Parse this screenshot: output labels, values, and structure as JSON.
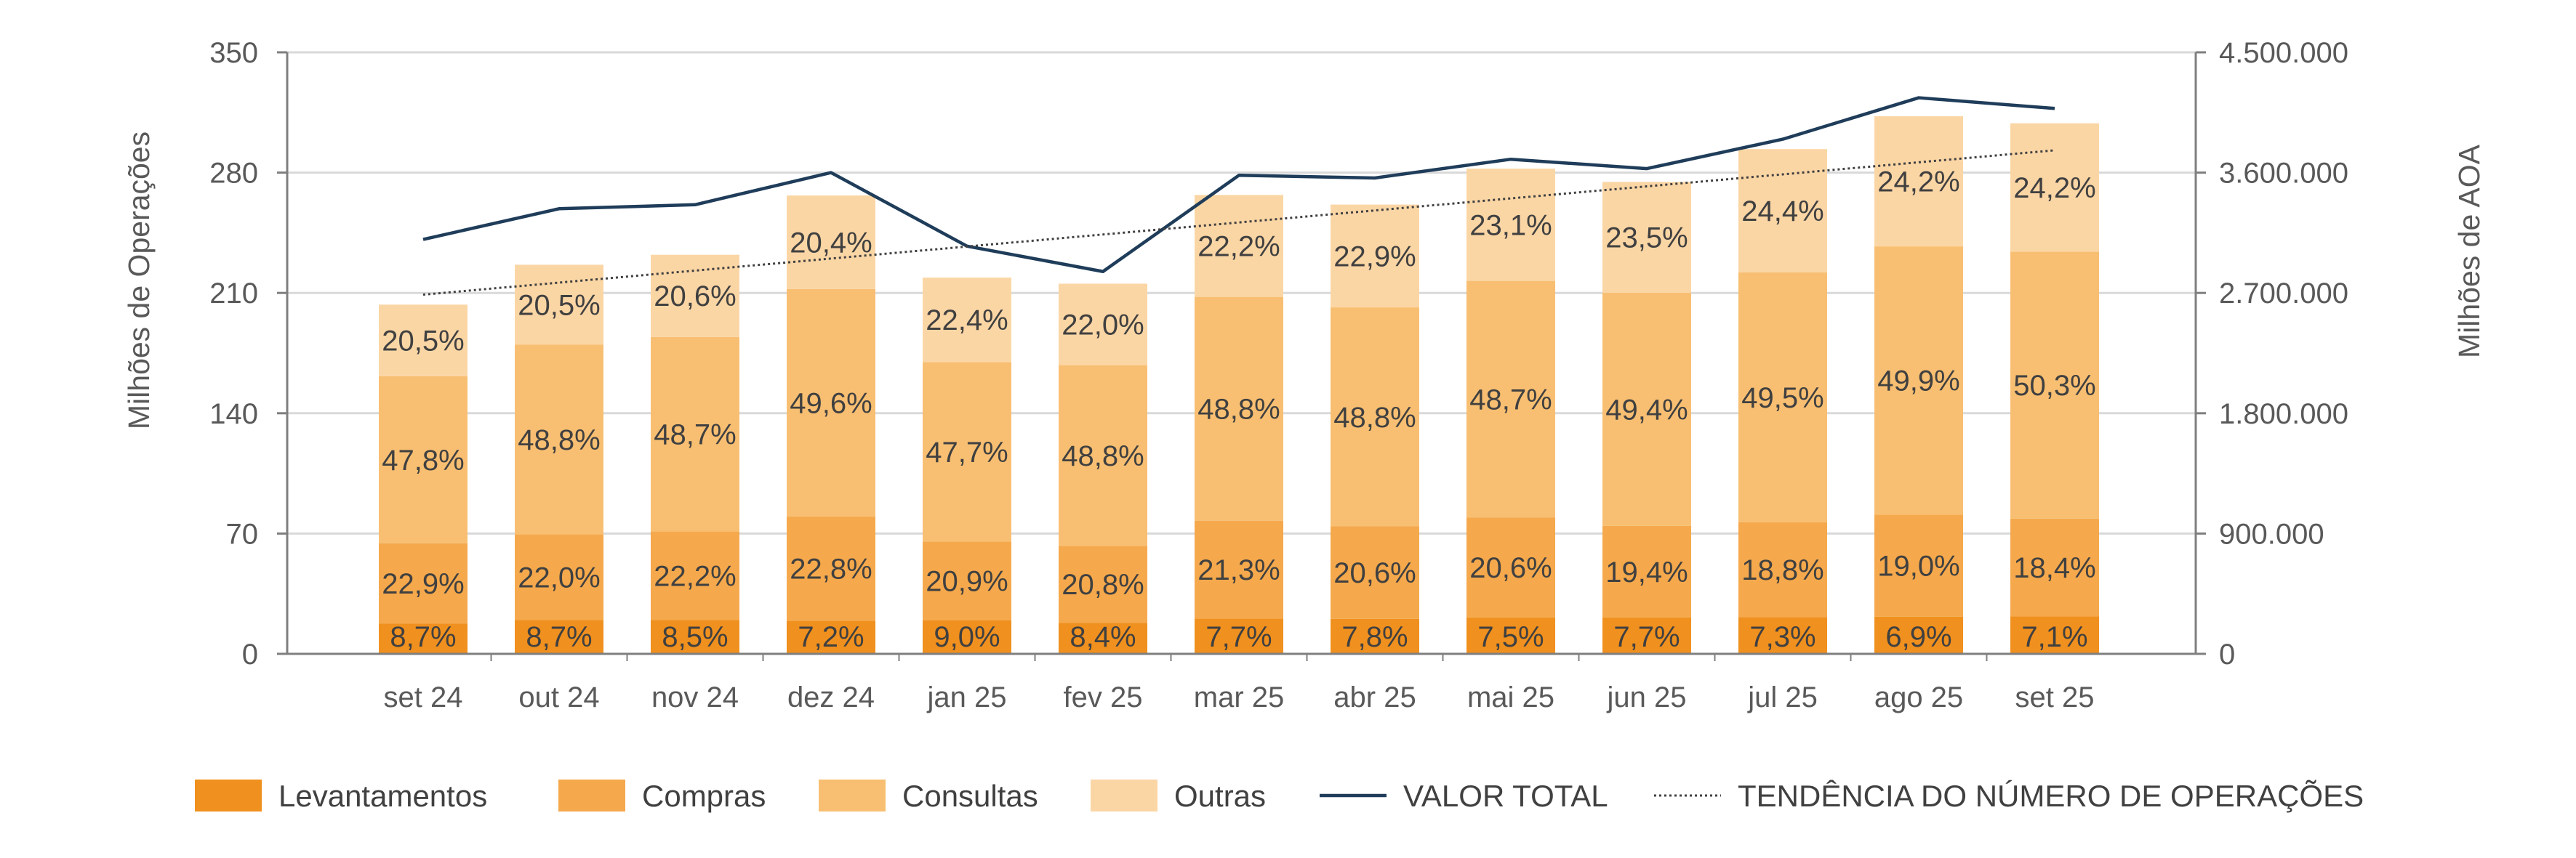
{
  "chart_data": {
    "type": "bar",
    "stacked": true,
    "categories": [
      "set 24",
      "out 24",
      "nov 24",
      "dez 24",
      "jan 25",
      "fev 25",
      "mar 25",
      "abr 25",
      "mai 25",
      "jun 25",
      "jul 25",
      "ago 25",
      "set 25"
    ],
    "series": [
      {
        "name": "Levantamentos",
        "color": "#f0901e",
        "values": [
          17.7,
          19.7,
          19.7,
          19.2,
          19.6,
          18.1,
          20.6,
          20.4,
          21.2,
          21.2,
          21.4,
          21.6,
          21.9
        ],
        "labels": [
          "8,7%",
          "8,7%",
          "8,5%",
          "7,2%",
          "9,0%",
          "8,4%",
          "7,7%",
          "7,8%",
          "7,5%",
          "7,7%",
          "7,3%",
          "6,9%",
          "7,1%"
        ]
      },
      {
        "name": "Compras",
        "color": "#f5a94c",
        "values": [
          46.6,
          49.8,
          51.6,
          60.8,
          45.8,
          44.8,
          56.9,
          53.8,
          58.2,
          53.3,
          55.2,
          59.4,
          56.8
        ],
        "labels": [
          "22,9%",
          "22,0%",
          "22,2%",
          "22,8%",
          "20,9%",
          "20,8%",
          "21,3%",
          "20,6%",
          "20,6%",
          "19,4%",
          "18,8%",
          "19,0%",
          "18,4%"
        ]
      },
      {
        "name": "Consultas",
        "color": "#f8bf72",
        "values": [
          97.2,
          110.5,
          113.1,
          132.3,
          104.4,
          105.1,
          130.2,
          127.4,
          137.6,
          135.6,
          145.4,
          156.1,
          155.3
        ],
        "labels": [
          "47,8%",
          "48,8%",
          "48,7%",
          "49,6%",
          "47,7%",
          "48,8%",
          "48,8%",
          "48,8%",
          "48,7%",
          "49,4%",
          "49,5%",
          "49,9%",
          "50,3%"
        ]
      },
      {
        "name": "Outras",
        "color": "#fbd6a5",
        "values": [
          41.7,
          46.4,
          47.8,
          54.4,
          49.1,
          47.4,
          59.3,
          59.8,
          65.3,
          64.5,
          71.7,
          75.7,
          74.7
        ],
        "labels": [
          "20,5%",
          "20,5%",
          "20,6%",
          "20,4%",
          "22,4%",
          "22,0%",
          "22,2%",
          "22,9%",
          "23,1%",
          "23,5%",
          "24,4%",
          "24,2%",
          "24,2%"
        ]
      }
    ],
    "line_series": [
      {
        "name": "VALOR TOTAL",
        "axis": "right",
        "color": "#1f3d5a",
        "style": "solid",
        "values": [
          3100000,
          3330000,
          3360000,
          3600000,
          3050000,
          2860000,
          3580000,
          3560000,
          3700000,
          3630000,
          3850000,
          4160000,
          4080000
        ]
      },
      {
        "name": "TENDÊNCIA DO NÚMERO DE OPERAÇÕES",
        "axis": "left",
        "color": "#404040",
        "style": "dotted",
        "values": [
          209,
          216,
          223,
          230,
          237,
          244,
          251,
          258,
          265,
          272,
          279,
          286,
          293
        ]
      }
    ],
    "ylabel": "Milhões de Operações",
    "y2label": "Milhões de AOA",
    "ylim": [
      0,
      350
    ],
    "y2lim": [
      0,
      4500000
    ],
    "yticks": [
      "0",
      "70",
      "140",
      "210",
      "280",
      "350"
    ],
    "y2ticks": [
      "0",
      "900.000",
      "1.800.000",
      "2.700.000",
      "3.600.000",
      "4.500.000"
    ],
    "grid": true,
    "legend_position": "bottom"
  }
}
